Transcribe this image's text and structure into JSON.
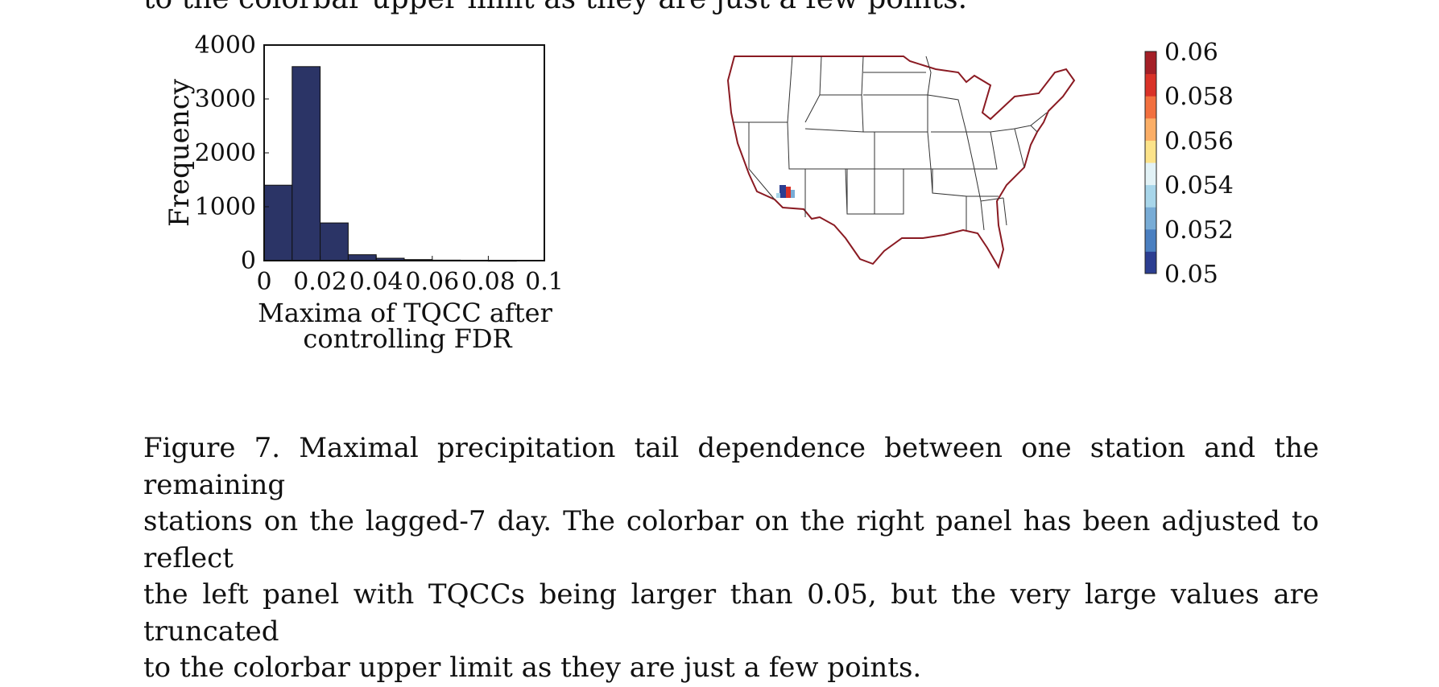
{
  "cut_text": "to the colorbar upper limit as they are just a few points.",
  "chart_data": [
    {
      "type": "bar",
      "xlabel": "Maxima of TQCC after",
      "xlabel2": "controlling FDR",
      "ylabel": "Frequency",
      "xlim": [
        0,
        0.1
      ],
      "ylim": [
        0,
        4000
      ],
      "xticks": [
        "0",
        "0.02",
        "0.04",
        "0.06",
        "0.08",
        "0.1"
      ],
      "yticks": [
        "0",
        "1000",
        "2000",
        "3000",
        "4000"
      ],
      "bin_width": 0.01,
      "bins": [
        {
          "x0": 0.0,
          "x1": 0.01,
          "value": 1400
        },
        {
          "x0": 0.01,
          "x1": 0.02,
          "value": 3600
        },
        {
          "x0": 0.02,
          "x1": 0.03,
          "value": 700
        },
        {
          "x0": 0.03,
          "x1": 0.04,
          "value": 110
        },
        {
          "x0": 0.04,
          "x1": 0.05,
          "value": 45
        },
        {
          "x0": 0.05,
          "x1": 0.06,
          "value": 20
        },
        {
          "x0": 0.06,
          "x1": 0.07,
          "value": 10
        },
        {
          "x0": 0.07,
          "x1": 0.08,
          "value": 8
        },
        {
          "x0": 0.08,
          "x1": 0.09,
          "value": 5
        }
      ],
      "bar_color": "#2b3466"
    },
    {
      "type": "heatmap",
      "colorbar_ticks": [
        "0.06",
        "0.058",
        "0.056",
        "0.054",
        "0.052",
        "0.05"
      ],
      "colorbar_range": [
        0.05,
        0.06
      ],
      "colorbar_colors": [
        "#2c3e91",
        "#4a7fc0",
        "#78acd6",
        "#a8d6ea",
        "#e2f2f6",
        "#fce38a",
        "#fbae66",
        "#f2703f",
        "#d93228",
        "#a41f27"
      ]
    }
  ],
  "caption": {
    "line1": "Figure 7. Maximal precipitation tail dependence between one station and the remaining",
    "line2": "stations on the lagged-7 day. The colorbar on the right panel has been adjusted to reflect",
    "line3": "the left panel with TQCCs being larger than 0.05, but the very large values are truncated",
    "line4": "to the colorbar upper limit as they are just a few points."
  }
}
